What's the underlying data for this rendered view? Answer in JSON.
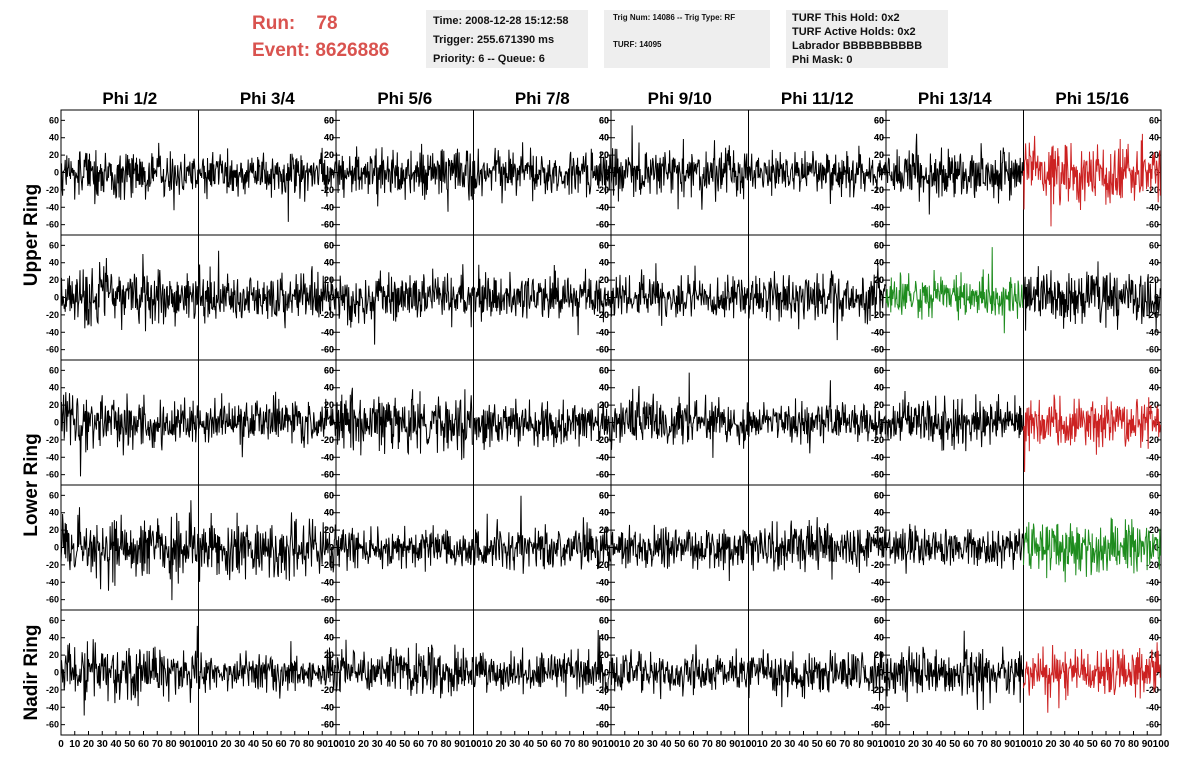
{
  "run_header": {
    "run_label": "Run:",
    "run_value": "78",
    "event_label": "Event:",
    "event_value": "8626886",
    "color": "#d9534f"
  },
  "info_panels": [
    [
      "Time: 2008-12-28 15:12:58",
      "Trigger: 255.671390 ms",
      "Priority: 6 -- Queue: 6"
    ],
    [
      "Trig Num: 14086 -- Trig Type: RF",
      "TURF: 14095"
    ],
    [
      "TURF This Hold: 0x2",
      "TURF Active Holds: 0x2",
      "Labrador BBBBBBBBBB",
      "Phi Mask: 0"
    ]
  ],
  "chart_data": {
    "type": "line",
    "layout": "grid",
    "columns": [
      "Phi 1/2",
      "Phi 3/4",
      "Phi 5/6",
      "Phi 7/8",
      "Phi 9/10",
      "Phi 11/12",
      "Phi 13/14",
      "Phi 15/16"
    ],
    "ring_labels": [
      {
        "label": "Upper Ring",
        "rows": [
          0,
          1
        ]
      },
      {
        "label": "Lower Ring",
        "rows": [
          2,
          3
        ]
      },
      {
        "label": "Nadir Ring",
        "rows": [
          4
        ]
      }
    ],
    "rows": 5,
    "ylim": [
      -65,
      65
    ],
    "yticks": [
      -60,
      -40,
      -20,
      0,
      20,
      40,
      60
    ],
    "xlim": [
      0,
      100
    ],
    "xticks": [
      0,
      10,
      20,
      30,
      40,
      50,
      60,
      70,
      80,
      90,
      100
    ],
    "samples_per_trace": 260,
    "trace_colors": {
      "normal": "#000000",
      "triggered": "#cc2222",
      "highlight": "#1e8c1e"
    },
    "trace_styles": [
      [
        "normal",
        "normal",
        "normal",
        "normal",
        "normal",
        "normal",
        "normal",
        "triggered"
      ],
      [
        "normal",
        "normal",
        "normal",
        "normal",
        "normal",
        "normal",
        "highlight",
        "normal"
      ],
      [
        "normal",
        "normal",
        "normal",
        "normal",
        "normal",
        "normal",
        "normal",
        "triggered"
      ],
      [
        "normal",
        "normal",
        "normal",
        "normal",
        "normal",
        "normal",
        "normal",
        "highlight"
      ],
      [
        "normal",
        "normal",
        "normal",
        "normal",
        "normal",
        "normal",
        "normal",
        "triggered"
      ]
    ],
    "noise_amplitude": [
      [
        14,
        12,
        14,
        13,
        14,
        11,
        14,
        18
      ],
      [
        15,
        13,
        13,
        12,
        12,
        13,
        12,
        15
      ],
      [
        15,
        12,
        16,
        13,
        13,
        11,
        14,
        14
      ],
      [
        16,
        17,
        12,
        13,
        11,
        12,
        11,
        15
      ],
      [
        15,
        11,
        13,
        11,
        11,
        12,
        13,
        13
      ]
    ]
  }
}
